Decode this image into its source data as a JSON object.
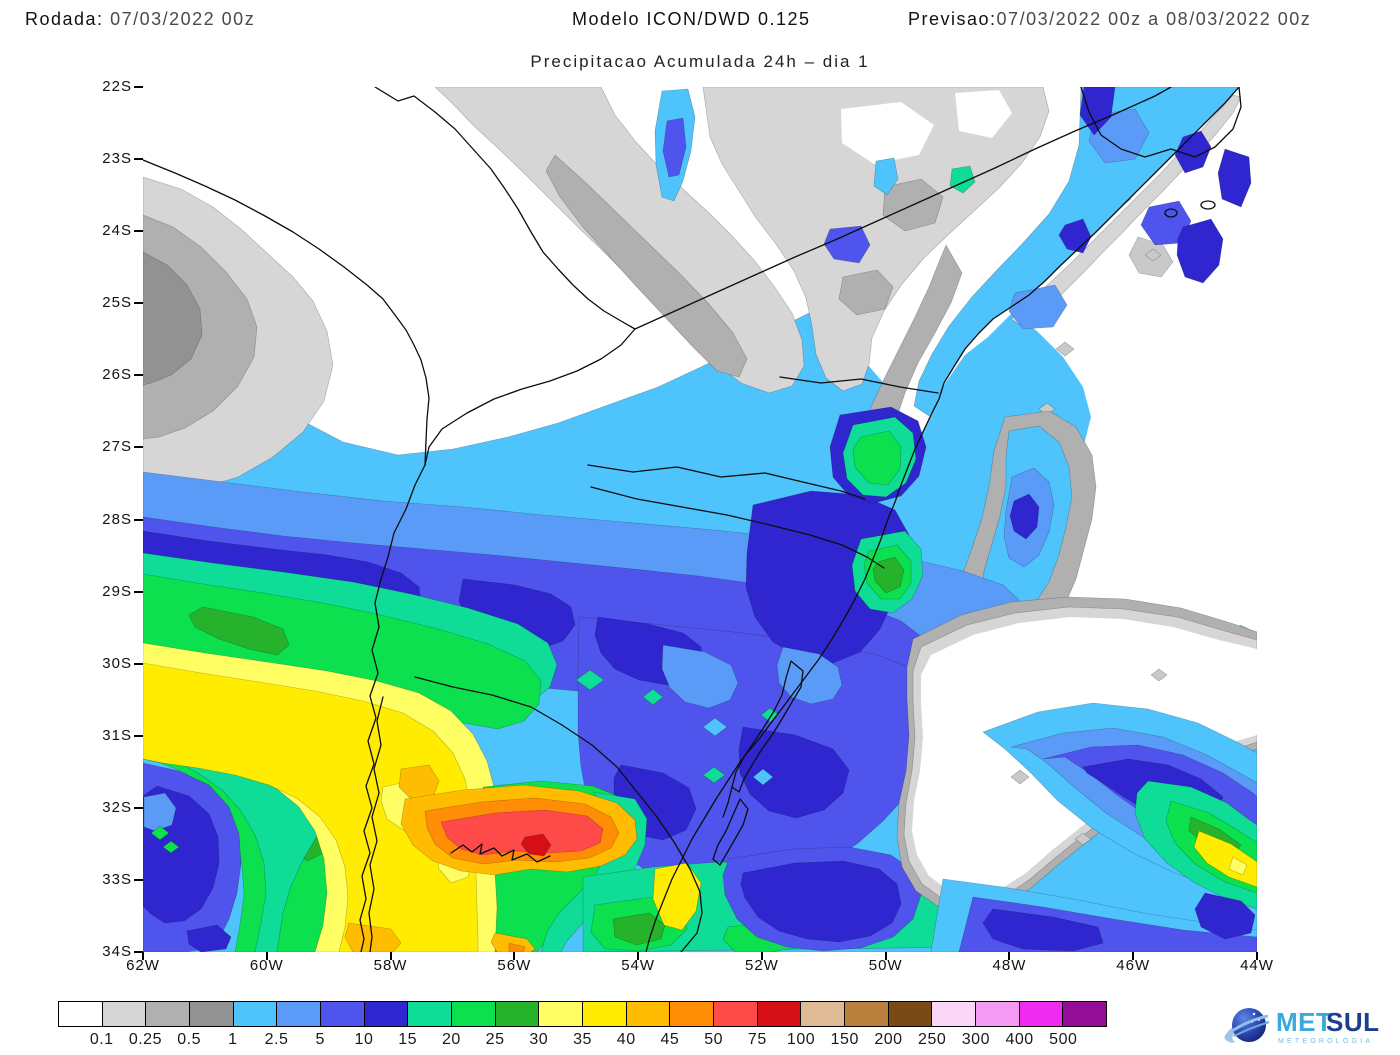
{
  "header": {
    "rodada_label": "Rodada:",
    "rodada_value": "07/03/2022 00z",
    "model": "Modelo ICON/DWD 0.125",
    "previsao_label": "Previsao:",
    "previsao_value": "07/03/2022 00z a 08/03/2022 00z"
  },
  "title": "Precipitacao Acumulada 24h – dia 1",
  "map": {
    "y_ticks": [
      "22S",
      "23S",
      "24S",
      "25S",
      "26S",
      "27S",
      "28S",
      "29S",
      "30S",
      "31S",
      "32S",
      "33S",
      "34S"
    ],
    "x_ticks": [
      "62W",
      "60W",
      "58W",
      "56W",
      "54W",
      "52W",
      "50W",
      "48W",
      "46W",
      "44W"
    ]
  },
  "legend": {
    "values": [
      "0.1",
      "0.25",
      "0.5",
      "1",
      "2.5",
      "5",
      "10",
      "15",
      "20",
      "25",
      "30",
      "35",
      "40",
      "45",
      "50",
      "75",
      "100",
      "150",
      "200",
      "250",
      "300",
      "400",
      "500"
    ],
    "colors": [
      "#ffffff",
      "#d6d6d6",
      "#b0b0b0",
      "#929292",
      "#4fc3fb",
      "#5b9bf8",
      "#4f55ec",
      "#3026cf",
      "#0fdc96",
      "#0ce04e",
      "#27b22b",
      "#ffff63",
      "#ffec00",
      "#ffbc00",
      "#ff8d05",
      "#ff4a4a",
      "#d40f16",
      "#debb96",
      "#b97f3c",
      "#7a4a16",
      "#fbd7f7",
      "#f49af2",
      "#ef2cf0",
      "#930d96"
    ]
  },
  "logo": {
    "met": "MET",
    "sul": "SUL",
    "tagline": "METEOROLOGIA"
  }
}
